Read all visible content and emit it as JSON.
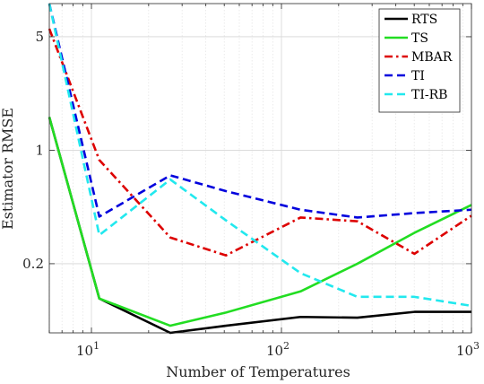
{
  "chart_data": {
    "type": "line",
    "xlabel": "Number of Temperatures",
    "ylabel": "Estimator RMSE",
    "xscale": "log",
    "yscale": "log",
    "xlim": [
      6,
      1000
    ],
    "ylim": [
      0.075,
      8
    ],
    "x_ticks": [
      {
        "value": 10,
        "base": "10",
        "exp": "1"
      },
      {
        "value": 100,
        "base": "10",
        "exp": "2"
      },
      {
        "value": 1000,
        "base": "10",
        "exp": "3"
      }
    ],
    "y_ticks": [
      {
        "value": 0.2,
        "label": "0.2"
      },
      {
        "value": 1,
        "label": "1"
      },
      {
        "value": 5,
        "label": "5"
      }
    ],
    "grid": true,
    "legend_position": "top-right",
    "x": [
      6,
      11,
      26,
      51,
      126,
      251,
      501,
      1000
    ],
    "series": [
      {
        "name": "RTS",
        "color": "#000000",
        "dash": "solid",
        "values": [
          1.6,
          0.122,
          0.075,
          0.083,
          0.094,
          0.093,
          0.101,
          0.101
        ]
      },
      {
        "name": "TS",
        "color": "#22dd22",
        "dash": "solid",
        "values": [
          1.6,
          0.122,
          0.083,
          0.1,
          0.135,
          0.2,
          0.31,
          0.46
        ]
      },
      {
        "name": "MBAR",
        "color": "#dd0000",
        "dash": "dashdot",
        "values": [
          5.6,
          0.87,
          0.29,
          0.225,
          0.385,
          0.365,
          0.23,
          0.395
        ]
      },
      {
        "name": "TI",
        "color": "#0000dd",
        "dash": "dashed",
        "values": [
          8,
          0.39,
          0.7,
          0.56,
          0.43,
          0.385,
          0.41,
          0.43
        ]
      },
      {
        "name": "TI-RB",
        "color": "#22e8ee",
        "dash": "dashed",
        "values": [
          8,
          0.3,
          0.66,
          0.37,
          0.175,
          0.125,
          0.125,
          0.11
        ]
      }
    ]
  }
}
